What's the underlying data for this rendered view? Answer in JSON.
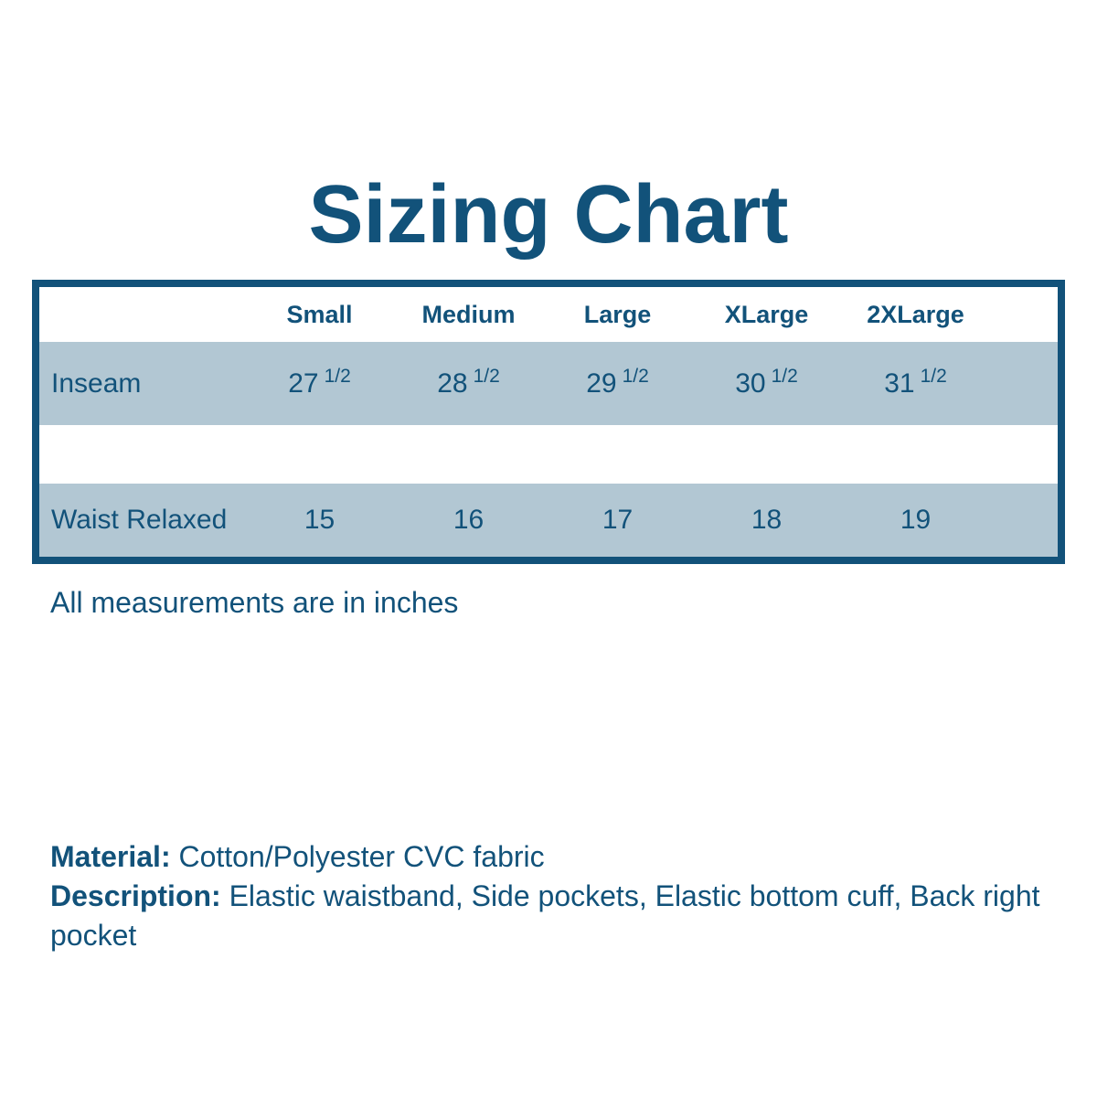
{
  "title": "Sizing Chart",
  "table": {
    "columns": [
      "Small",
      "Medium",
      "Large",
      "XLarge",
      "2XLarge"
    ],
    "rows": [
      {
        "label": "Inseam",
        "values": [
          {
            "whole": "27",
            "frac": "1/2"
          },
          {
            "whole": "28",
            "frac": "1/2"
          },
          {
            "whole": "29",
            "frac": "1/2"
          },
          {
            "whole": "30",
            "frac": "1/2"
          },
          {
            "whole": "31",
            "frac": "1/2"
          }
        ]
      },
      {
        "label": "Waist Relaxed",
        "values": [
          {
            "whole": "15",
            "frac": ""
          },
          {
            "whole": "16",
            "frac": ""
          },
          {
            "whole": "17",
            "frac": ""
          },
          {
            "whole": "18",
            "frac": ""
          },
          {
            "whole": "19",
            "frac": ""
          }
        ]
      }
    ],
    "note": "All measurements are in inches"
  },
  "details": {
    "material_label": "Material:",
    "material_value": "Cotton/Polyester CVC fabric",
    "description_label": "Description:",
    "description_value": "Elastic waistband, Side pockets, Elastic bottom cuff, Back right pocket"
  },
  "colors": {
    "accent_text": "#12527a",
    "table_border": "#12527a",
    "row_shade": "#b2c7d3",
    "background": "#ffffff"
  },
  "chart_data": {
    "type": "table",
    "title": "Sizing Chart",
    "columns": [
      "",
      "Small",
      "Medium",
      "Large",
      "XLarge",
      "2XLarge"
    ],
    "rows": [
      [
        "Inseam",
        "27 1/2",
        "28 1/2",
        "29 1/2",
        "30 1/2",
        "31 1/2"
      ],
      [
        "Waist Relaxed",
        "15",
        "16",
        "17",
        "18",
        "19"
      ]
    ],
    "note": "All measurements are in inches"
  }
}
